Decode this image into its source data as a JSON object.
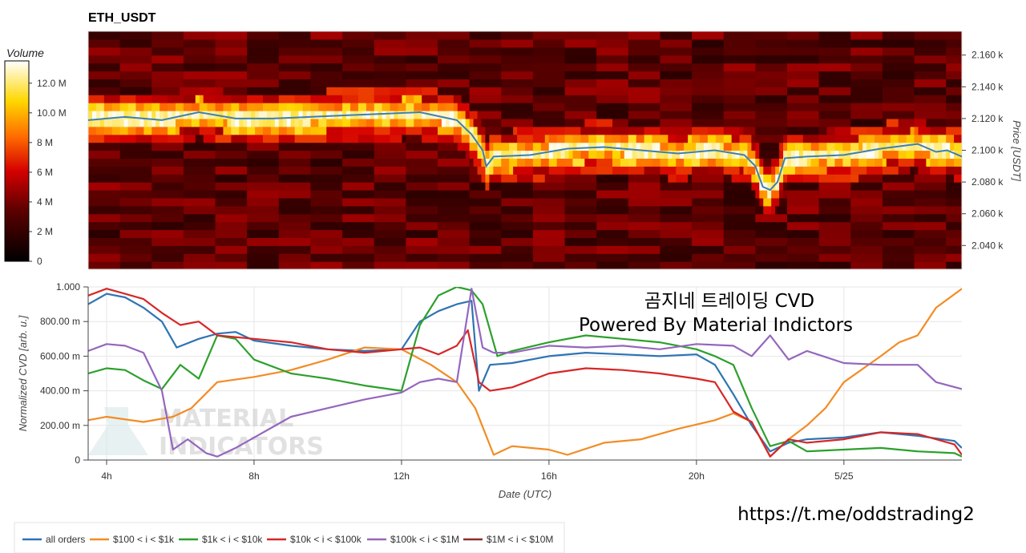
{
  "chart_data": [
    {
      "type": "heatmap",
      "title": "ETH_USDT",
      "ylabel": "Price [USDT]",
      "ylim": [
        2025,
        2175
      ],
      "yticks": [
        "2.040 k",
        "2.060 k",
        "2.080 k",
        "2.100 k",
        "2.120 k",
        "2.140 k",
        "2.160 k"
      ],
      "ytick_values": [
        2040,
        2060,
        2080,
        2100,
        2120,
        2140,
        2160
      ],
      "x_range_hours": [
        3.5,
        27.2
      ],
      "colorbar": {
        "label": "Volume",
        "ticks": [
          "0",
          "2 M",
          "4 M",
          "6 M",
          "8 M",
          "10.0 M",
          "12.0 M"
        ],
        "tick_values": [
          0,
          2,
          4,
          6,
          8,
          10,
          12
        ],
        "range": [
          0,
          13.5
        ]
      },
      "price_line": {
        "color": "#3a7fb5",
        "x": [
          3.5,
          4.5,
          5.5,
          6.5,
          7.5,
          8.5,
          9.5,
          10.5,
          11.5,
          12.5,
          13.5,
          13.9,
          14.2,
          14.3,
          14.5,
          15.5,
          16.5,
          17.5,
          18.5,
          19.5,
          20.5,
          21.3,
          21.6,
          21.8,
          22.0,
          22.2,
          22.4,
          23.0,
          24.0,
          25.0,
          26.0,
          26.5,
          26.8,
          27.2
        ],
        "y": [
          2119,
          2121,
          2119,
          2124,
          2120,
          2120,
          2121,
          2122,
          2123,
          2124,
          2119,
          2110,
          2100,
          2090,
          2096,
          2097,
          2101,
          2102,
          2100,
          2098,
          2100,
          2097,
          2090,
          2077,
          2075,
          2080,
          2095,
          2096,
          2097,
          2101,
          2104,
          2099,
          2100,
          2096
        ]
      }
    },
    {
      "type": "line",
      "ylabel": "Normalized CVD [arb. u.]",
      "xlabel": "Date (UTC)",
      "ylim": [
        0,
        1
      ],
      "yticks": [
        "0",
        "200.00 m",
        "400.00 m",
        "600.00 m",
        "800.00 m",
        "1.000"
      ],
      "ytick_values": [
        0,
        0.2,
        0.4,
        0.6,
        0.8,
        1.0
      ],
      "xticks": [
        "4h",
        "8h",
        "12h",
        "16h",
        "20h",
        "5/25"
      ],
      "xtick_values": [
        4,
        8,
        12,
        16,
        20,
        24
      ],
      "xlim": [
        3.5,
        27.2
      ],
      "legend_placement": "bottom-left",
      "series": [
        {
          "name": "all orders",
          "color": "#2e74b2",
          "x": [
            3.5,
            4,
            4.5,
            5,
            5.5,
            5.9,
            6.5,
            7,
            7.5,
            8,
            9,
            10,
            11,
            12,
            12.5,
            13,
            13.5,
            13.9,
            14.1,
            14.4,
            15,
            16,
            17,
            18,
            19,
            20,
            20.5,
            21,
            21.5,
            22,
            22.5,
            23,
            24,
            25,
            26,
            27,
            27.2
          ],
          "y": [
            0.9,
            0.96,
            0.94,
            0.88,
            0.8,
            0.65,
            0.7,
            0.73,
            0.74,
            0.69,
            0.66,
            0.64,
            0.63,
            0.64,
            0.8,
            0.86,
            0.9,
            0.92,
            0.4,
            0.55,
            0.56,
            0.6,
            0.62,
            0.61,
            0.6,
            0.61,
            0.55,
            0.38,
            0.2,
            0.05,
            0.1,
            0.12,
            0.13,
            0.16,
            0.14,
            0.11,
            0.07
          ]
        },
        {
          "name": "$100 < i < $1k",
          "color": "#f28c25",
          "x": [
            3.5,
            4,
            5,
            5.8,
            6.3,
            7,
            8,
            9,
            10,
            11,
            12,
            12.8,
            13.5,
            14,
            14.5,
            15,
            16,
            16.5,
            17.5,
            18.5,
            19.5,
            20.5,
            21,
            21.5,
            22,
            22.5,
            23,
            23.5,
            24,
            25,
            25.5,
            26,
            26.5,
            27.2
          ],
          "y": [
            0.23,
            0.25,
            0.22,
            0.25,
            0.3,
            0.45,
            0.48,
            0.52,
            0.58,
            0.65,
            0.64,
            0.55,
            0.45,
            0.3,
            0.03,
            0.08,
            0.06,
            0.03,
            0.1,
            0.12,
            0.18,
            0.23,
            0.27,
            0.22,
            0.02,
            0.12,
            0.2,
            0.3,
            0.45,
            0.6,
            0.68,
            0.72,
            0.88,
            0.99
          ]
        },
        {
          "name": "$1k < i < $10k",
          "color": "#2ca02c",
          "x": [
            3.5,
            4,
            4.5,
            5,
            5.5,
            6,
            6.5,
            7,
            7.5,
            8,
            9,
            10,
            11,
            12,
            12.5,
            13,
            13.5,
            13.9,
            14.2,
            14.6,
            15,
            16,
            17,
            18,
            19,
            20,
            20.5,
            21,
            21.5,
            22,
            22.5,
            23,
            24,
            25,
            26,
            27,
            27.2
          ],
          "y": [
            0.5,
            0.53,
            0.52,
            0.46,
            0.41,
            0.55,
            0.47,
            0.72,
            0.7,
            0.58,
            0.5,
            0.47,
            0.43,
            0.4,
            0.78,
            0.95,
            1.0,
            0.98,
            0.9,
            0.6,
            0.63,
            0.68,
            0.72,
            0.7,
            0.68,
            0.64,
            0.6,
            0.55,
            0.3,
            0.08,
            0.11,
            0.05,
            0.06,
            0.07,
            0.05,
            0.04,
            0.02
          ]
        },
        {
          "name": "$10k < i < $100k",
          "color": "#d62728",
          "x": [
            3.5,
            4,
            4.5,
            5,
            5.5,
            6,
            6.5,
            7,
            8,
            9,
            10,
            11,
            12,
            12.5,
            13,
            13.5,
            13.8,
            14.1,
            14.4,
            15,
            16,
            17,
            18,
            19,
            20,
            20.5,
            21,
            21.5,
            22,
            22.5,
            23,
            24,
            25,
            26,
            27,
            27.2
          ],
          "y": [
            0.95,
            0.99,
            0.96,
            0.93,
            0.85,
            0.78,
            0.8,
            0.72,
            0.7,
            0.68,
            0.64,
            0.62,
            0.64,
            0.65,
            0.61,
            0.66,
            0.75,
            0.45,
            0.4,
            0.42,
            0.5,
            0.53,
            0.52,
            0.5,
            0.47,
            0.45,
            0.28,
            0.22,
            0.02,
            0.12,
            0.1,
            0.12,
            0.16,
            0.15,
            0.09,
            0.03
          ]
        },
        {
          "name": "$100k < i < $1M",
          "color": "#9467bd",
          "x": [
            3.5,
            4,
            4.5,
            5,
            5.5,
            5.8,
            6.2,
            6.7,
            7,
            7.5,
            8,
            9,
            10,
            11,
            12,
            12.5,
            13,
            13.5,
            13.9,
            14.2,
            14.5,
            15,
            16,
            17,
            18,
            19,
            20,
            21,
            21.5,
            22,
            22.5,
            23,
            24,
            25,
            26,
            26.5,
            27.2
          ],
          "y": [
            0.63,
            0.67,
            0.66,
            0.62,
            0.4,
            0.06,
            0.12,
            0.04,
            0.02,
            0.07,
            0.13,
            0.25,
            0.3,
            0.35,
            0.39,
            0.45,
            0.47,
            0.45,
            0.99,
            0.65,
            0.62,
            0.62,
            0.66,
            0.65,
            0.66,
            0.64,
            0.67,
            0.66,
            0.6,
            0.72,
            0.58,
            0.63,
            0.56,
            0.55,
            0.55,
            0.45,
            0.41
          ]
        },
        {
          "name": "$1M < i < $10M",
          "color": "#8c2d2d",
          "x": [],
          "y": []
        }
      ]
    }
  ],
  "overlay": {
    "line1": "곰지네 트레이딩 CVD",
    "line2": "Powered By Material Indictors",
    "link": "https://t.me/oddstrading2"
  },
  "watermark": {
    "line1": "MATERIAL",
    "line2": "INDICATORS"
  }
}
